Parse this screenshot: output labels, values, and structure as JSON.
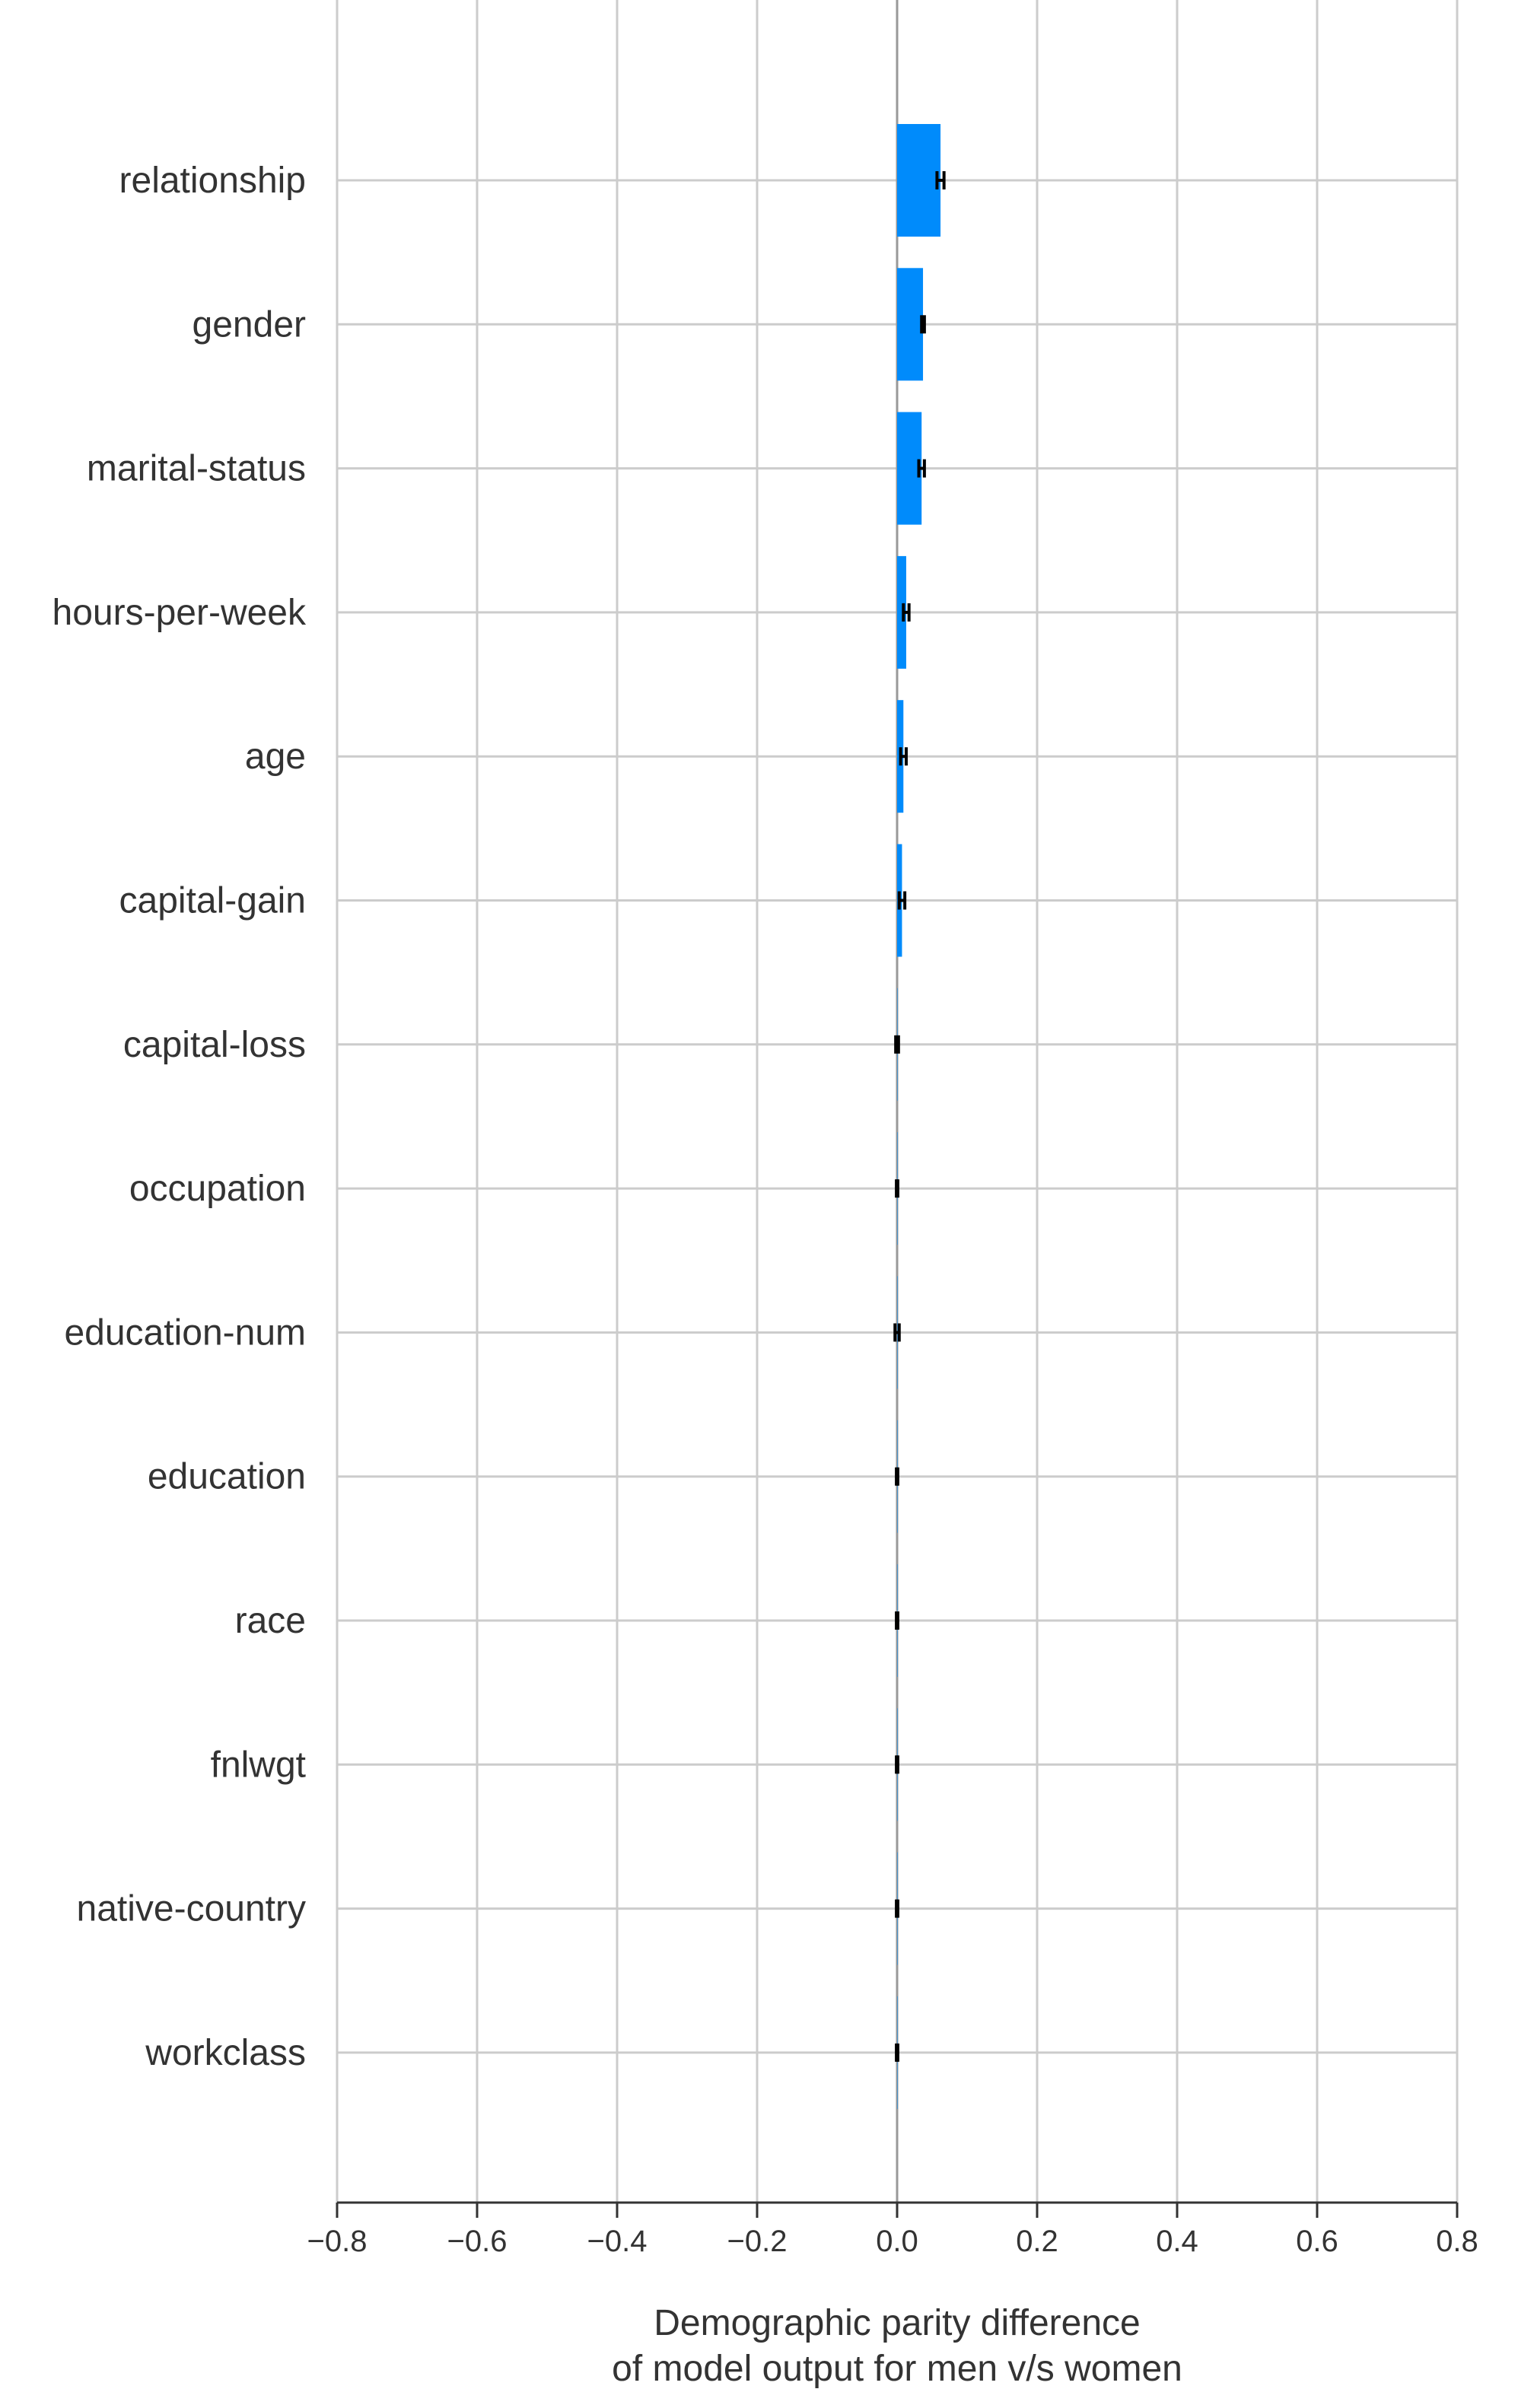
{
  "chart_data": {
    "type": "bar",
    "orientation": "horizontal",
    "categories": [
      "relationship",
      "gender",
      "marital-status",
      "hours-per-week",
      "age",
      "capital-gain",
      "capital-loss",
      "occupation",
      "education-num",
      "education",
      "race",
      "fnlwgt",
      "native-country",
      "workclass"
    ],
    "values": [
      0.062,
      0.037,
      0.035,
      0.013,
      0.009,
      0.007,
      0.0,
      0.0,
      0.0,
      0.0,
      0.0,
      0.0,
      0.0,
      0.0
    ],
    "errors": [
      0.005,
      0.002,
      0.004,
      0.004,
      0.004,
      0.004,
      0.002,
      0.001,
      0.003,
      0.001,
      0.001,
      0.001,
      0.001,
      0.001
    ],
    "xlim": [
      -0.8,
      0.8
    ],
    "xticks": [
      -0.8,
      -0.6,
      -0.4,
      -0.2,
      0.0,
      0.2,
      0.4,
      0.6,
      0.8
    ],
    "xtick_labels": [
      "−0.8",
      "−0.6",
      "−0.4",
      "−0.2",
      "0.0",
      "0.2",
      "0.4",
      "0.6",
      "0.8"
    ],
    "xlabel": [
      "Demographic parity difference",
      "of model output for men v/s women"
    ],
    "grid": true,
    "colors": {
      "bar": "#008bfb",
      "grid": "#cccccc",
      "axis": "#333333",
      "zero_line": "#999999",
      "error_bar": "#000000"
    }
  }
}
